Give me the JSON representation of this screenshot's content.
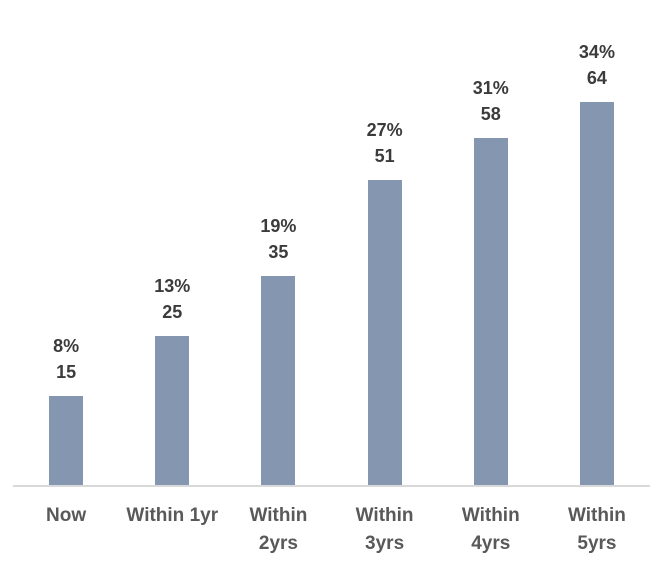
{
  "chart_data": {
    "type": "bar",
    "title": "",
    "xlabel": "",
    "ylabel": "",
    "categories": [
      "Now",
      "Within 1yr",
      "Within 2yrs",
      "Within 3yrs",
      "Within 4yrs",
      "Within 5yrs"
    ],
    "category_display": [
      "Now",
      "Within 1yr",
      "Within\n2yrs",
      "Within\n3yrs",
      "Within\n4yrs",
      "Within\n5yrs"
    ],
    "values": [
      15,
      25,
      35,
      51,
      58,
      64
    ],
    "value_labels": [
      "15",
      "25",
      "35",
      "51",
      "58",
      "64"
    ],
    "percent_labels": [
      "8%",
      "13%",
      "19%",
      "27%",
      "31%",
      "34%"
    ],
    "ylim": [
      0,
      80
    ],
    "grid": false,
    "legend_position": "none",
    "colors": {
      "bar": "#8496B0",
      "axis_line": "#D9D9D9",
      "data_label": "#3B3B3B",
      "axis_label": "#595959",
      "background": "#FFFFFF"
    }
  }
}
